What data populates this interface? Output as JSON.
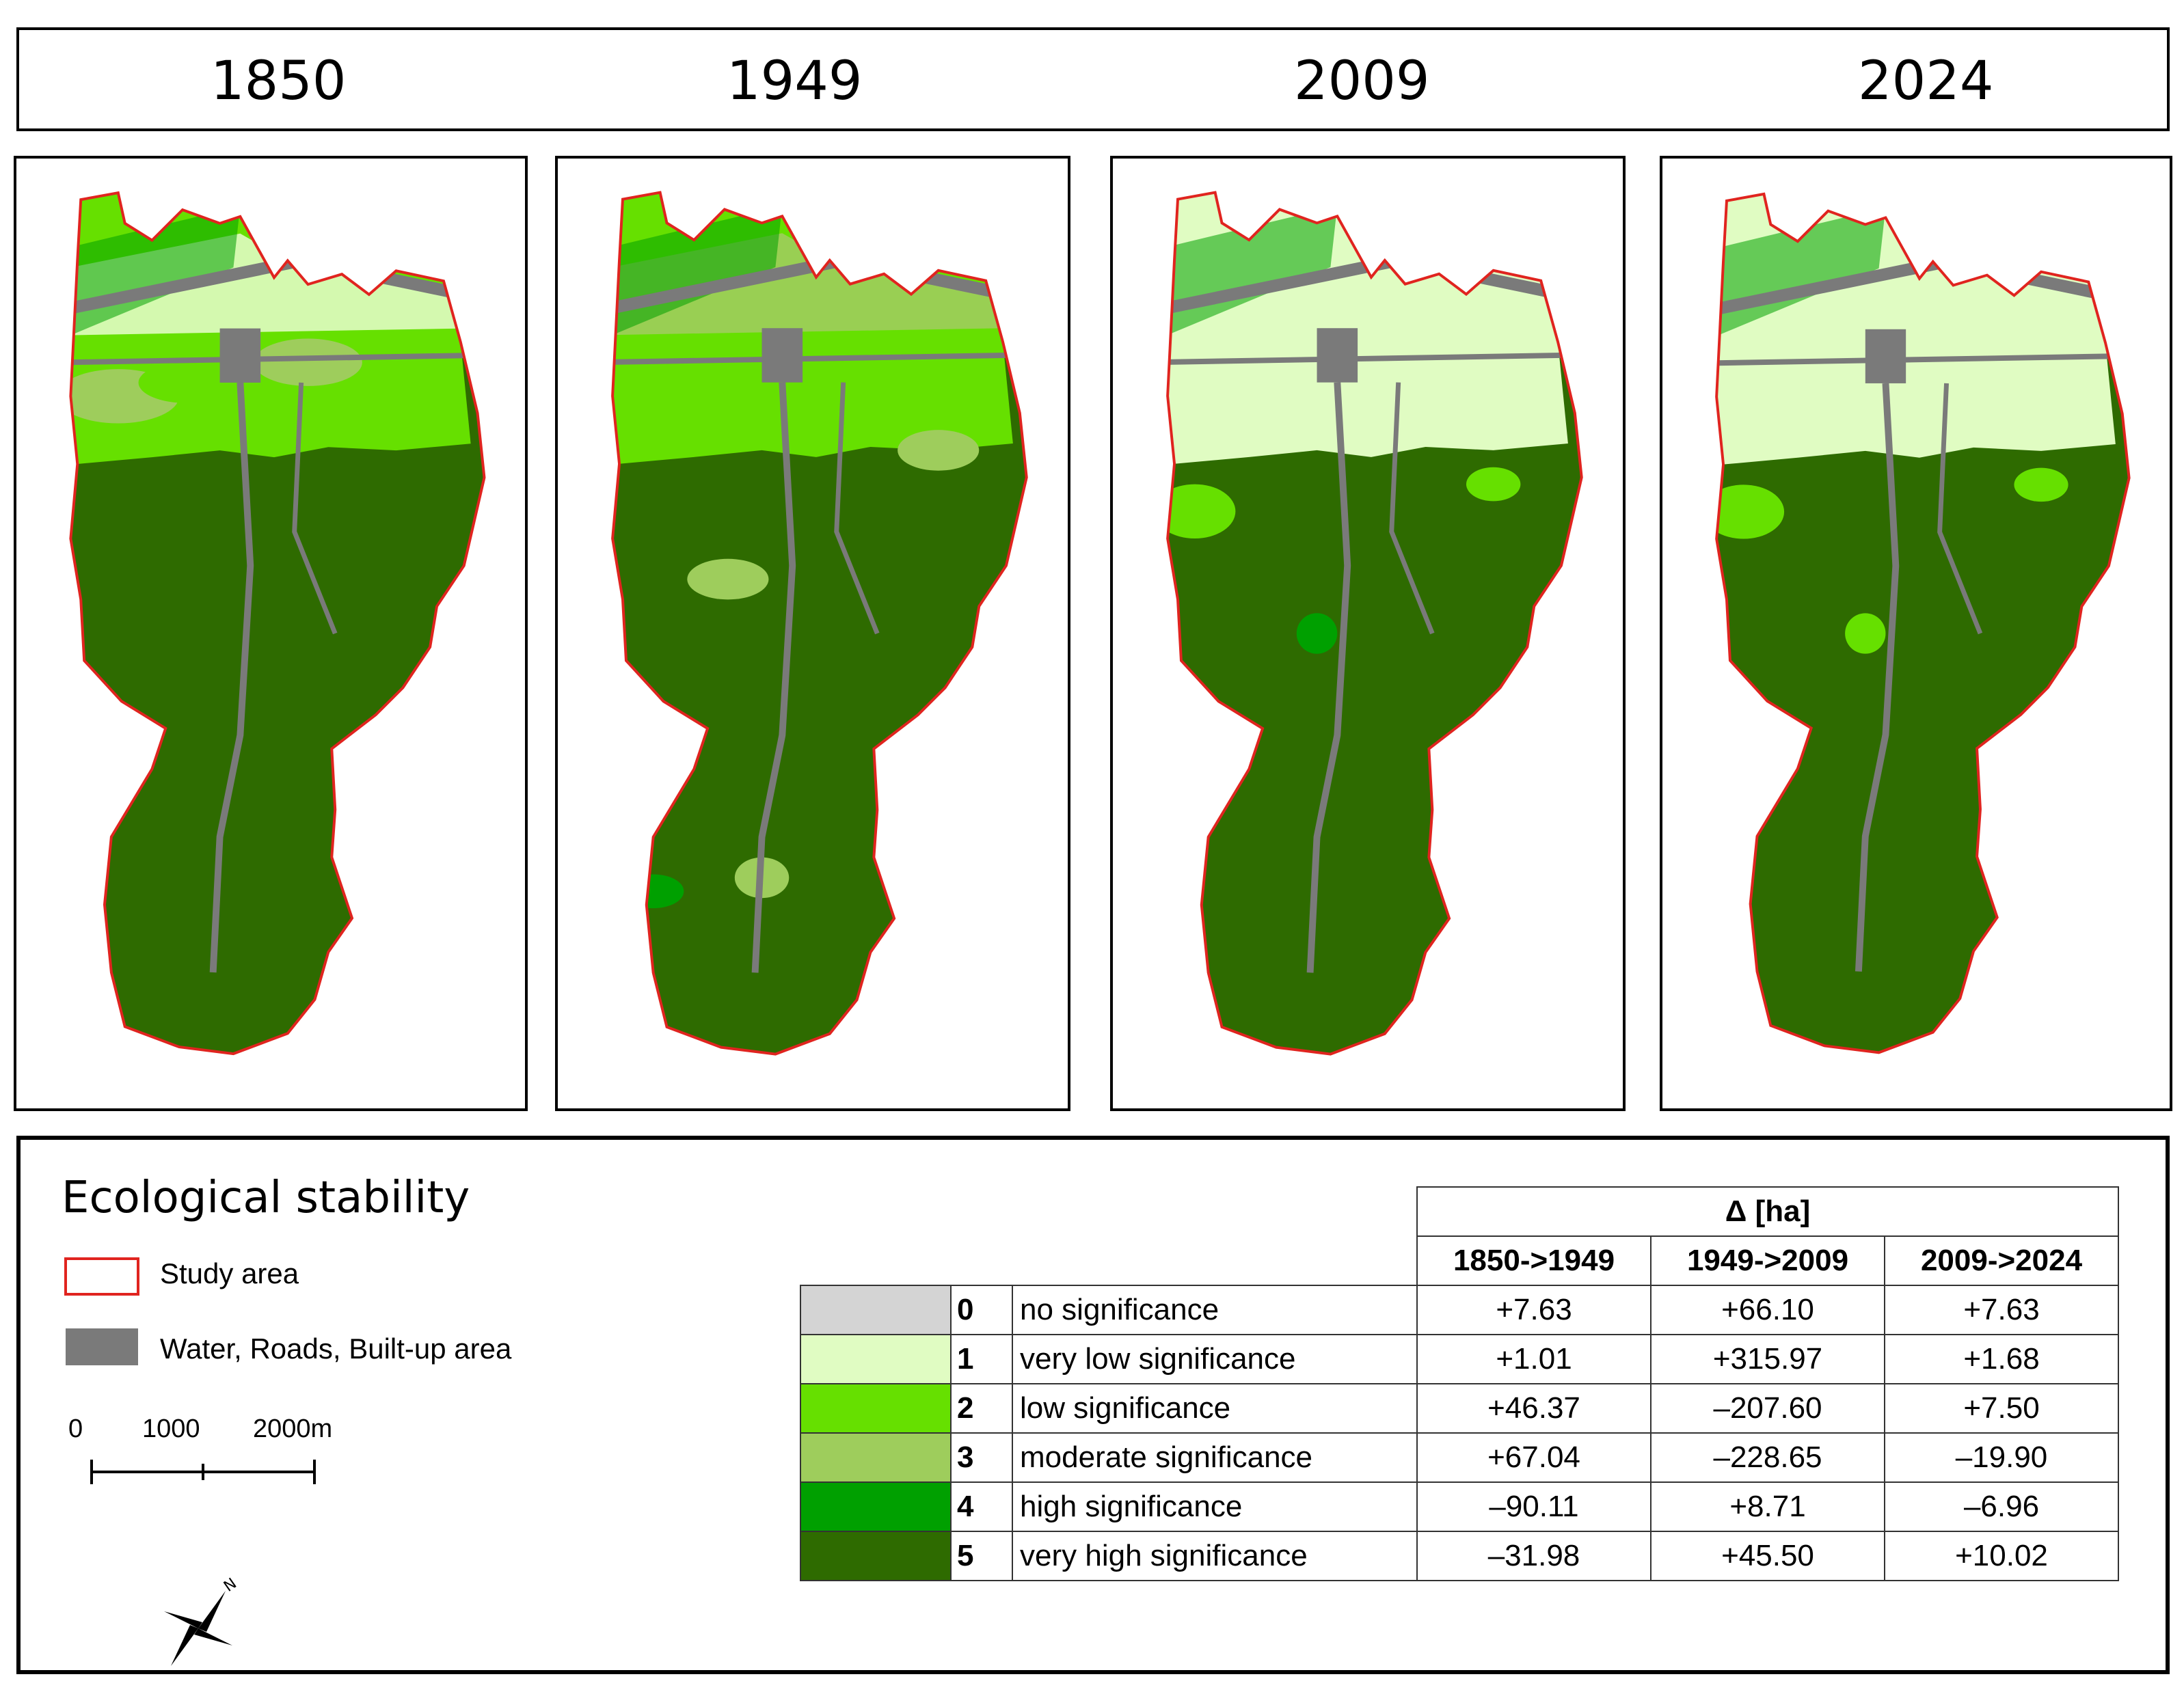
{
  "years": [
    "1850",
    "1949",
    "2009",
    "2024"
  ],
  "maps": [
    {
      "year": "1850"
    },
    {
      "year": "1949"
    },
    {
      "year": "2009"
    },
    {
      "year": "2024"
    }
  ],
  "legend": {
    "title": "Ecological stability",
    "study_area": "Study area",
    "built_up": "Water, Roads, Built-up area",
    "study_area_color": "#e0241f",
    "built_up_color": "#7a7a7a",
    "scale": {
      "labels": [
        "0",
        "1000",
        "2000m"
      ]
    },
    "north_arrow_letter": "N"
  },
  "table": {
    "header": "Δ [ha]",
    "periods": [
      "1850->1949",
      "1949->2009",
      "2009->2024"
    ],
    "rows": [
      {
        "class": "0",
        "name": "no significance",
        "color": "#d4d4d4",
        "values": [
          "+7.63",
          "+66.10",
          "+7.63"
        ]
      },
      {
        "class": "1",
        "name": "very low significance",
        "color": "#e0fcc2",
        "values": [
          "+1.01",
          "+315.97",
          "+1.68"
        ]
      },
      {
        "class": "2",
        "name": "low significance",
        "color": "#66e000",
        "values": [
          "+46.37",
          "–207.60",
          "+7.50"
        ]
      },
      {
        "class": "3",
        "name": "moderate significance",
        "color": "#9ecd5c",
        "values": [
          "+67.04",
          "–228.65",
          "–19.90"
        ]
      },
      {
        "class": "4",
        "name": "high significance",
        "color": "#00a000",
        "values": [
          "–90.11",
          "+8.71",
          "–6.96"
        ]
      },
      {
        "class": "5",
        "name": "very high significance",
        "color": "#2e6b00",
        "values": [
          "–31.98",
          "+45.50",
          "+10.02"
        ]
      }
    ]
  }
}
